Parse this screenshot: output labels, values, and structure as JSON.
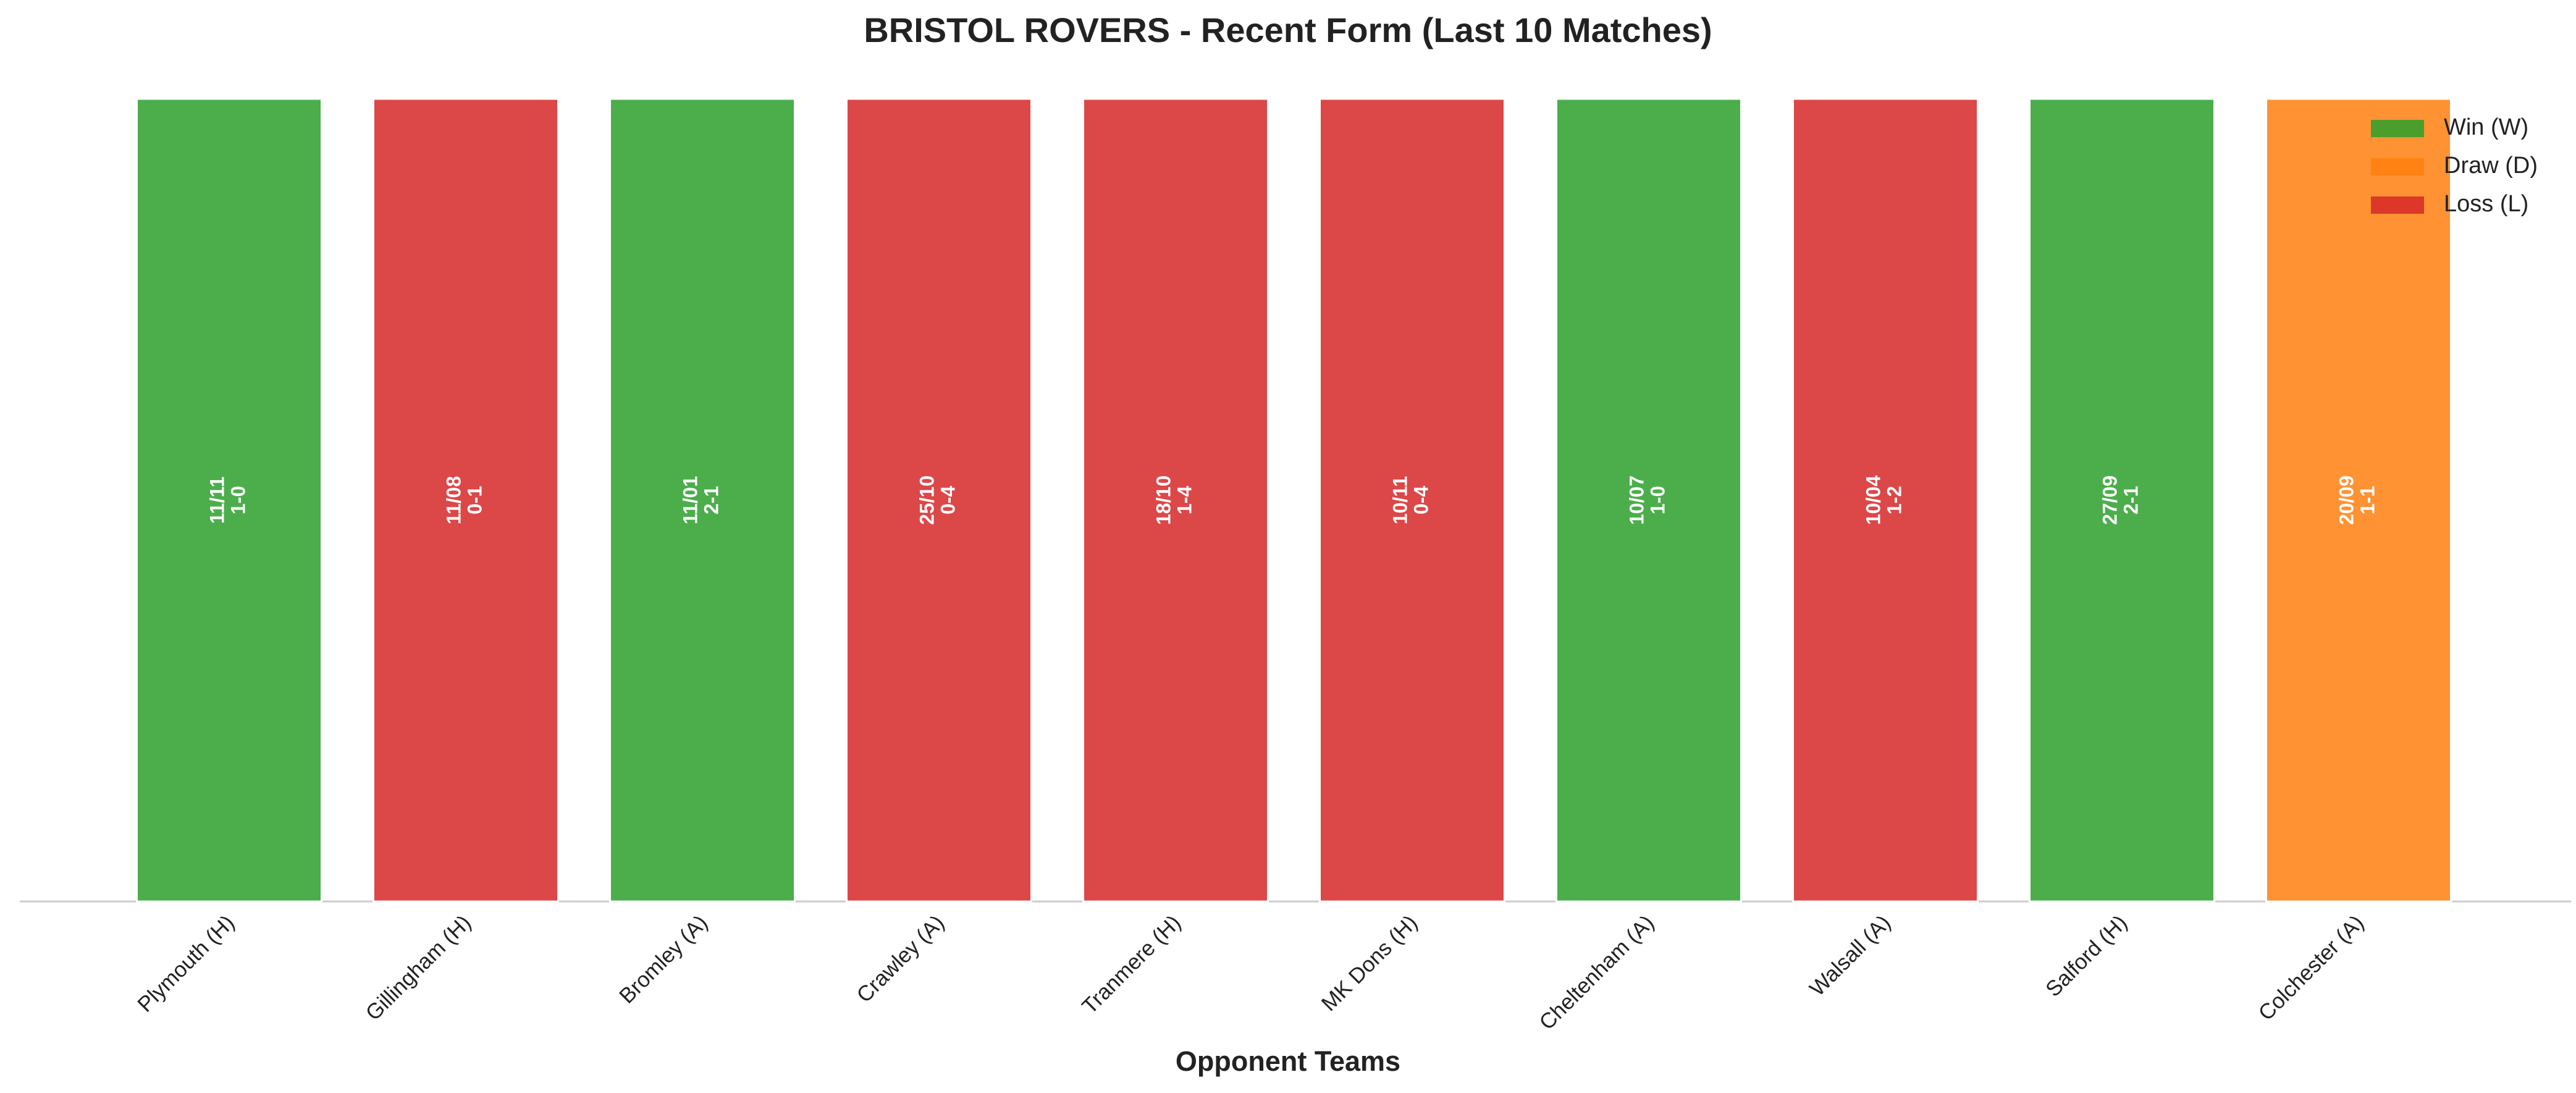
{
  "chart_data": {
    "type": "bar",
    "title": "BRISTOL ROVERS - Recent Form (Last 10 Matches)",
    "x_label": "Opponent Teams",
    "categories": [
      "Plymouth (H)",
      "Gillingham (H)",
      "Bromley (A)",
      "Crawley (A)",
      "Tranmere (H)",
      "MK Dons (H)",
      "Cheltenham (A)",
      "Walsall (A)",
      "Salford (H)",
      "Colchester (A)"
    ],
    "values": [
      1,
      1,
      1,
      1,
      1,
      1,
      1,
      1,
      1,
      1
    ],
    "colors": [
      "#2ca02c",
      "#d62728",
      "#2ca02c",
      "#d62728",
      "#d62728",
      "#d62728",
      "#2ca02c",
      "#d62728",
      "#2ca02c",
      "#ff7f0e"
    ],
    "bar_labels": [
      {
        "date": "11/11",
        "score": "1-0"
      },
      {
        "date": "11/08",
        "score": "0-1"
      },
      {
        "date": "11/01",
        "score": "2-1"
      },
      {
        "date": "25/10",
        "score": "0-4"
      },
      {
        "date": "18/10",
        "score": "1-4"
      },
      {
        "date": "10/11",
        "score": "0-4"
      },
      {
        "date": "10/07",
        "score": "1-0"
      },
      {
        "date": "10/04",
        "score": "1-2"
      },
      {
        "date": "27/09",
        "score": "2-1"
      },
      {
        "date": "20/09",
        "score": "1-1"
      }
    ],
    "ylim": [
      0,
      1
    ],
    "legend_position": "upper right",
    "legend": [
      {
        "label": "Win (W)",
        "color": "#2ca02c"
      },
      {
        "label": "Draw (D)",
        "color": "#ff7f0e"
      },
      {
        "label": "Loss (L)",
        "color": "#d62728"
      }
    ]
  }
}
